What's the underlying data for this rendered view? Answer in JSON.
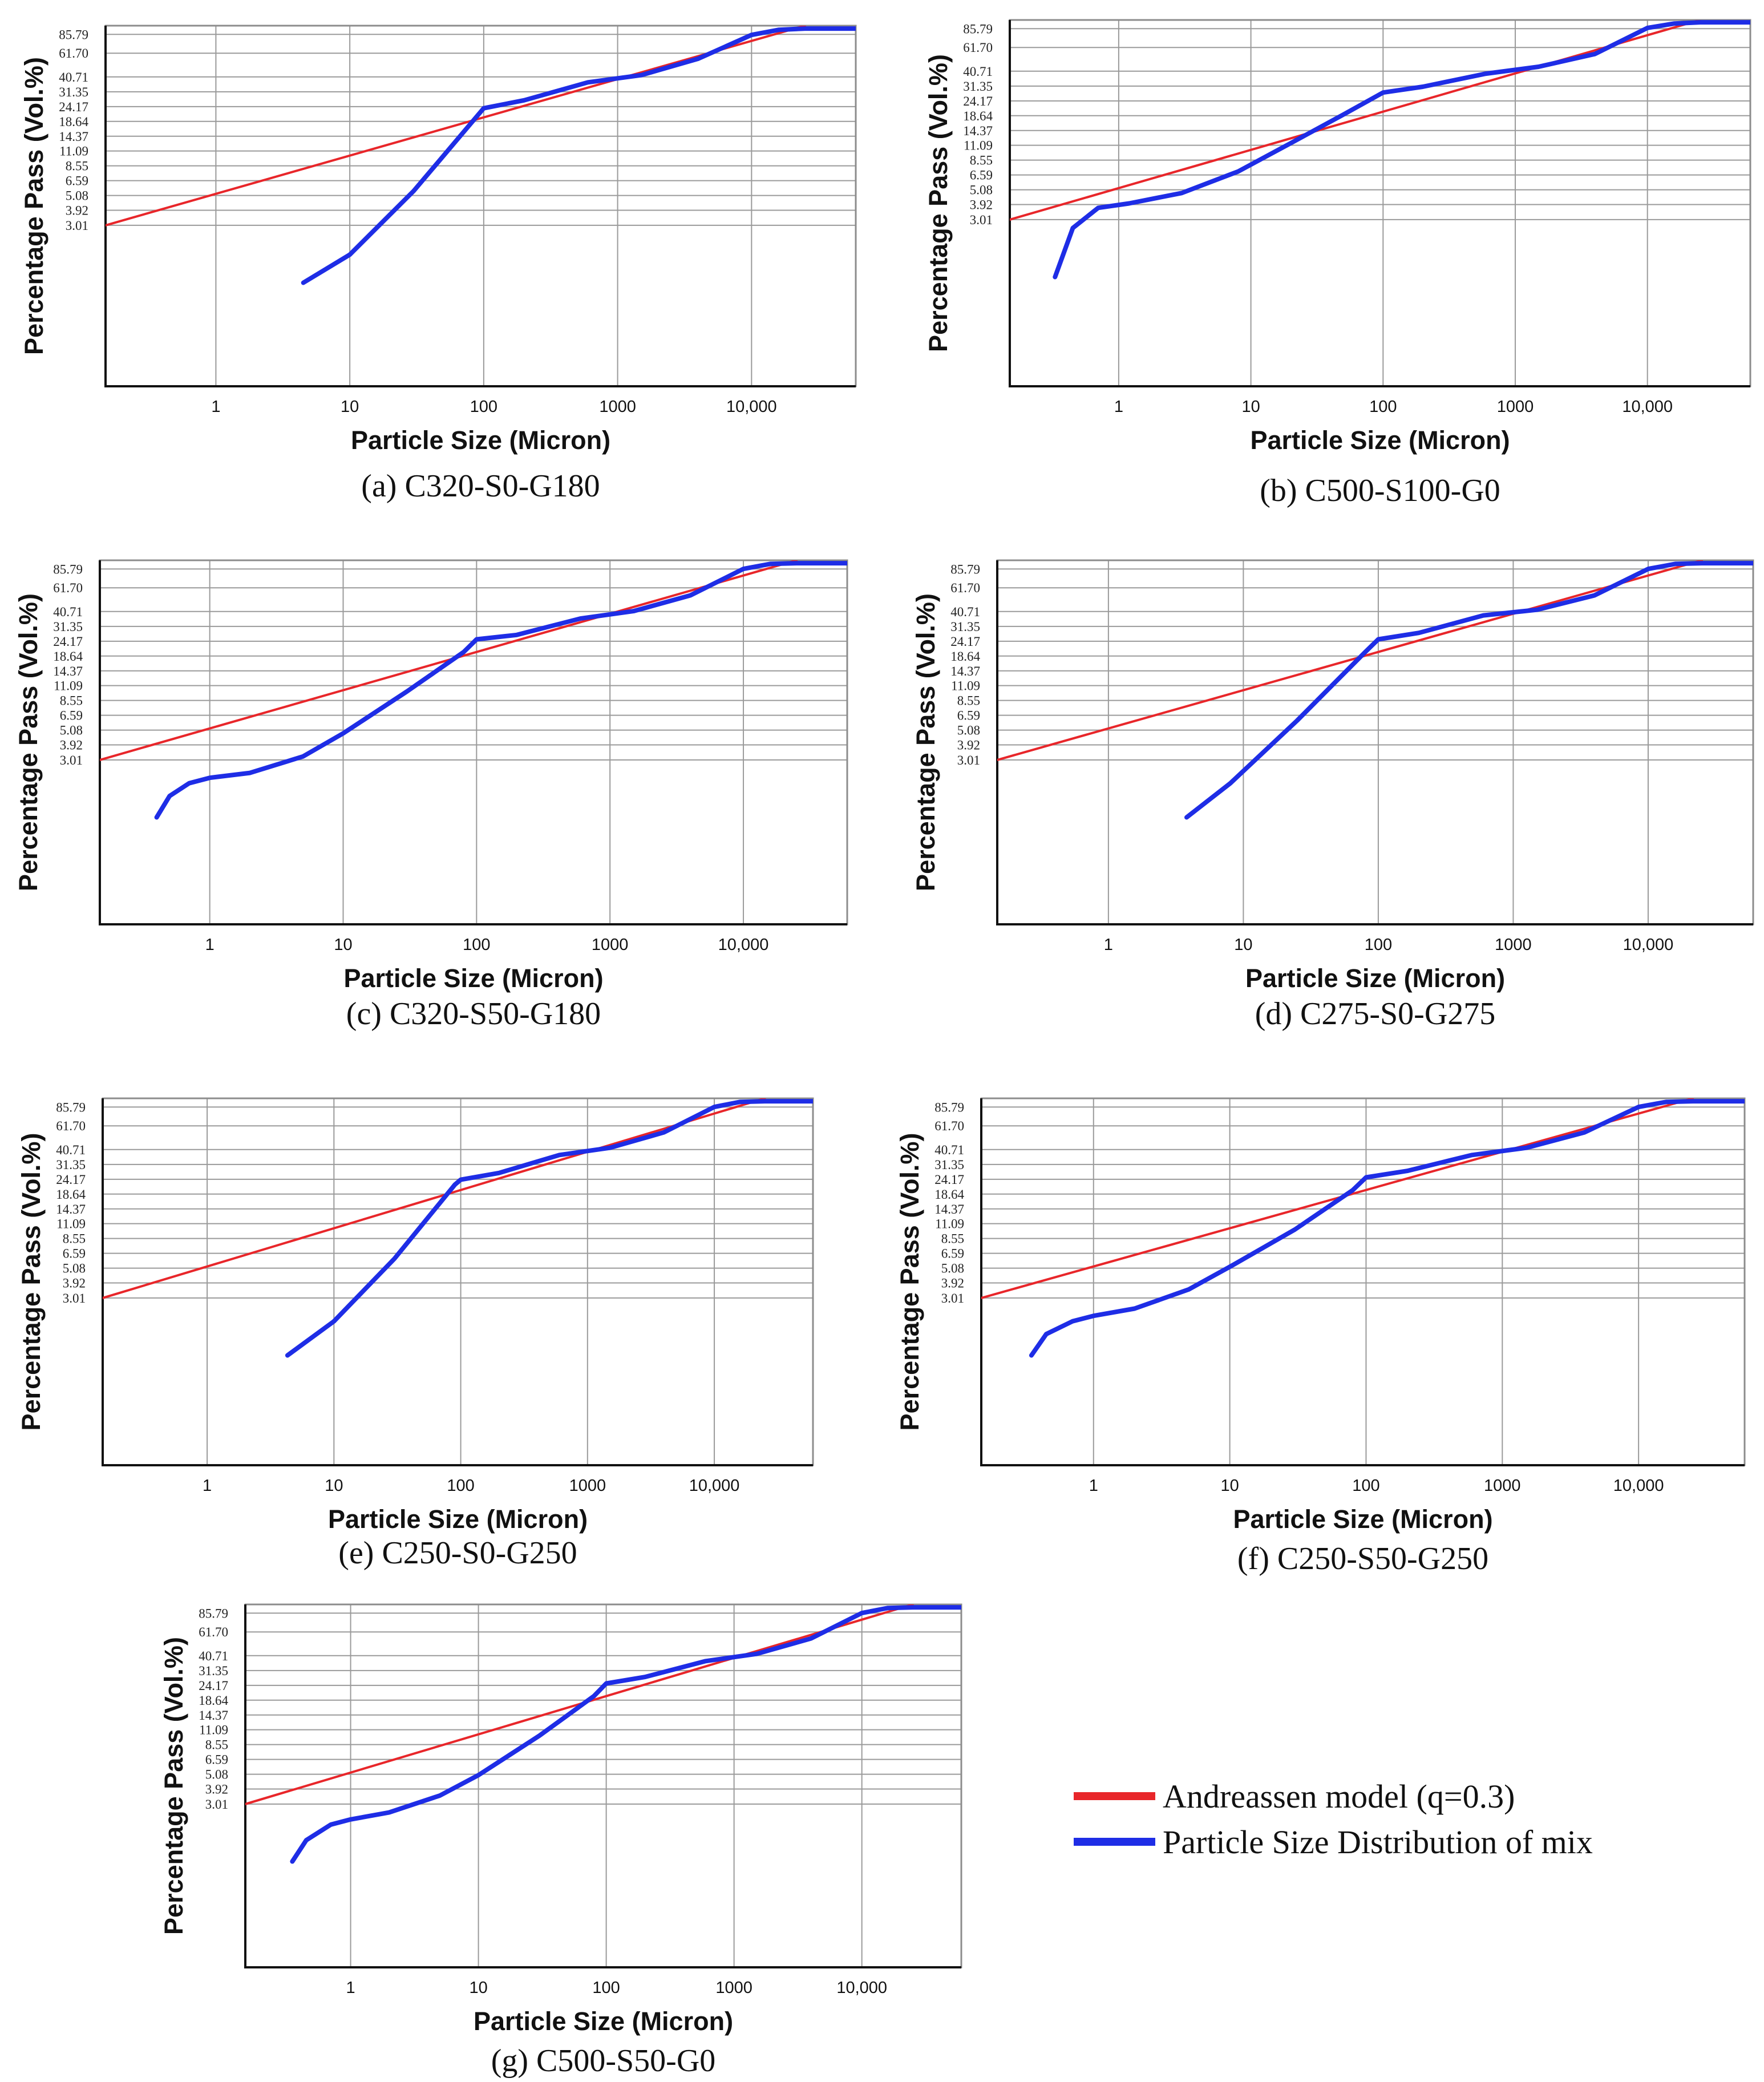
{
  "chart_data": [
    {
      "type": "line",
      "caption": "(a) C320-S0-G180",
      "xlabel": "Particle Size (Micron)",
      "ylabel": "Percentage Pass (Vol.%)",
      "x_scale": "log",
      "xlim": [
        0.15,
        60000
      ],
      "x_ticks": [
        "1",
        "10",
        "100",
        "1000",
        "10,000"
      ],
      "y_ticks": [
        "85.79",
        "61.70",
        "40.71",
        "31.35",
        "24.17",
        "18.64",
        "14.37",
        "11.09",
        "8.55",
        "6.59",
        "5.08",
        "3.92",
        "3.01"
      ],
      "grid": true,
      "series": [
        {
          "name": "Andreassen model (q=0.3)",
          "color": "#e8262a",
          "x": [
            0.15,
            25000
          ],
          "y": [
            3.01,
            100
          ]
        },
        {
          "name": "Particle Size Distribution of mix",
          "color": "#1e2de6",
          "x": [
            4.5,
            10,
            30,
            100,
            200,
            600,
            1500,
            4000,
            10000,
            16000,
            25000,
            60000
          ],
          "y": [
            1.1,
            1.8,
            5.5,
            23.5,
            27,
            37,
            42,
            56,
            85,
            93,
            95,
            95
          ]
        }
      ]
    },
    {
      "type": "line",
      "caption": "(b) C500-S100-G0",
      "xlabel": "Particle Size (Micron)",
      "ylabel": "Percentage Pass (Vol.%)",
      "x_scale": "log",
      "xlim": [
        0.15,
        60000
      ],
      "x_ticks": [
        "1",
        "10",
        "100",
        "1000",
        "10,000"
      ],
      "y_ticks": [
        "85.79",
        "61.70",
        "40.71",
        "31.35",
        "24.17",
        "18.64",
        "14.37",
        "11.09",
        "8.55",
        "6.59",
        "5.08",
        "3.92",
        "3.01"
      ],
      "grid": true,
      "series": [
        {
          "name": "Andreassen model (q=0.3)",
          "color": "#e8262a",
          "x": [
            0.15,
            25000
          ],
          "y": [
            3.01,
            100
          ]
        },
        {
          "name": "Particle Size Distribution of mix",
          "color": "#1e2de6",
          "x": [
            0.33,
            0.45,
            0.7,
            1.2,
            3,
            8,
            20,
            50,
            100,
            200,
            600,
            1500,
            4000,
            10000,
            16000,
            25000,
            60000
          ],
          "y": [
            1.1,
            2.6,
            3.7,
            4.0,
            4.8,
            7.0,
            11.5,
            19,
            28,
            31,
            39,
            44,
            55,
            87,
            94,
            96,
            96
          ]
        }
      ]
    },
    {
      "type": "line",
      "caption": "(c) C320-S50-G180",
      "xlabel": "Particle Size (Micron)",
      "ylabel": "Percentage Pass (Vol.%)",
      "x_scale": "log",
      "xlim": [
        0.15,
        60000
      ],
      "x_ticks": [
        "1",
        "10",
        "100",
        "1000",
        "10,000"
      ],
      "y_ticks": [
        "85.79",
        "61.70",
        "40.71",
        "31.35",
        "24.17",
        "18.64",
        "14.37",
        "11.09",
        "8.55",
        "6.59",
        "5.08",
        "3.92",
        "3.01"
      ],
      "grid": true,
      "series": [
        {
          "name": "Andreassen model (q=0.3)",
          "color": "#e8262a",
          "x": [
            0.15,
            25000
          ],
          "y": [
            3.01,
            100
          ]
        },
        {
          "name": "Particle Size Distribution of mix",
          "color": "#1e2de6",
          "x": [
            0.4,
            0.5,
            0.7,
            1,
            2,
            5,
            10,
            30,
            80,
            100,
            200,
            600,
            1500,
            4000,
            10000,
            16000,
            25000,
            60000
          ],
          "y": [
            1.1,
            1.6,
            2.0,
            2.2,
            2.4,
            3.2,
            4.8,
            10,
            20,
            25,
            27,
            36,
            41,
            54,
            86,
            94,
            95,
            95
          ]
        }
      ]
    },
    {
      "type": "line",
      "caption": "(d) C275-S0-G275",
      "xlabel": "Particle Size (Micron)",
      "ylabel": "Percentage Pass (Vol.%)",
      "x_scale": "log",
      "xlim": [
        0.15,
        60000
      ],
      "x_ticks": [
        "1",
        "10",
        "100",
        "1000",
        "10,000"
      ],
      "y_ticks": [
        "85.79",
        "61.70",
        "40.71",
        "31.35",
        "24.17",
        "18.64",
        "14.37",
        "11.09",
        "8.55",
        "6.59",
        "5.08",
        "3.92",
        "3.01"
      ],
      "grid": true,
      "series": [
        {
          "name": "Andreassen model (q=0.3)",
          "color": "#e8262a",
          "x": [
            0.15,
            25000
          ],
          "y": [
            3.01,
            100
          ]
        },
        {
          "name": "Particle Size Distribution of mix",
          "color": "#1e2de6",
          "x": [
            3.8,
            8,
            25,
            80,
            100,
            200,
            600,
            1500,
            4000,
            10000,
            16000,
            25000,
            60000
          ],
          "y": [
            1.1,
            2.0,
            6,
            20,
            25,
            28,
            38,
            42,
            54,
            86,
            94,
            95,
            95
          ]
        }
      ]
    },
    {
      "type": "line",
      "caption": "(e) C250-S0-G250",
      "xlabel": "Particle Size (Micron)",
      "ylabel": "Percentage Pass (Vol.%)",
      "x_scale": "log",
      "xlim": [
        0.15,
        60000
      ],
      "x_ticks": [
        "1",
        "10",
        "100",
        "1000",
        "10,000"
      ],
      "y_ticks": [
        "85.79",
        "61.70",
        "40.71",
        "31.35",
        "24.17",
        "18.64",
        "14.37",
        "11.09",
        "8.55",
        "6.59",
        "5.08",
        "3.92",
        "3.01"
      ],
      "grid": true,
      "series": [
        {
          "name": "Andreassen model (q=0.3)",
          "color": "#e8262a",
          "x": [
            0.15,
            25000
          ],
          "y": [
            3.01,
            100
          ]
        },
        {
          "name": "Particle Size Distribution of mix",
          "color": "#1e2de6",
          "x": [
            4.3,
            10,
            30,
            90,
            100,
            200,
            600,
            1500,
            4000,
            10000,
            16000,
            25000,
            60000
          ],
          "y": [
            1.1,
            2.0,
            6,
            22,
            24,
            27,
            37,
            42,
            55,
            86,
            94,
            95,
            95
          ]
        }
      ]
    },
    {
      "type": "line",
      "caption": "(f) C250-S50-G250",
      "xlabel": "Particle Size (Micron)",
      "ylabel": "Percentage Pass (Vol.%)",
      "x_scale": "log",
      "xlim": [
        0.15,
        60000
      ],
      "x_ticks": [
        "1",
        "10",
        "100",
        "1000",
        "10,000"
      ],
      "y_ticks": [
        "85.79",
        "61.70",
        "40.71",
        "31.35",
        "24.17",
        "18.64",
        "14.37",
        "11.09",
        "8.55",
        "6.59",
        "5.08",
        "3.92",
        "3.01"
      ],
      "grid": true,
      "series": [
        {
          "name": "Andreassen model (q=0.3)",
          "color": "#e8262a",
          "x": [
            0.15,
            25000
          ],
          "y": [
            3.01,
            100
          ]
        },
        {
          "name": "Particle Size Distribution of mix",
          "color": "#1e2de6",
          "x": [
            0.35,
            0.45,
            0.7,
            1,
            2,
            5,
            10,
            30,
            80,
            100,
            200,
            600,
            1500,
            4000,
            10000,
            16000,
            25000,
            60000
          ],
          "y": [
            1.1,
            1.6,
            2.0,
            2.2,
            2.5,
            3.5,
            5.2,
            10,
            20,
            25,
            28,
            37,
            42,
            55,
            86,
            94,
            95,
            95
          ]
        }
      ]
    },
    {
      "type": "line",
      "caption": "(g) C500-S50-G0",
      "xlabel": "Particle Size (Micron)",
      "ylabel": "Percentage Pass (Vol.%)",
      "x_scale": "log",
      "xlim": [
        0.15,
        60000
      ],
      "x_ticks": [
        "1",
        "10",
        "100",
        "1000",
        "10,000"
      ],
      "y_ticks": [
        "85.79",
        "61.70",
        "40.71",
        "31.35",
        "24.17",
        "18.64",
        "14.37",
        "11.09",
        "8.55",
        "6.59",
        "5.08",
        "3.92",
        "3.01"
      ],
      "grid": true,
      "series": [
        {
          "name": "Andreassen model (q=0.3)",
          "color": "#e8262a",
          "x": [
            0.15,
            25000
          ],
          "y": [
            3.01,
            100
          ]
        },
        {
          "name": "Particle Size Distribution of mix",
          "color": "#1e2de6",
          "x": [
            0.35,
            0.45,
            0.7,
            1,
            2,
            5,
            10,
            30,
            80,
            100,
            200,
            600,
            1500,
            4000,
            10000,
            16000,
            25000,
            60000
          ],
          "y": [
            1.1,
            1.6,
            2.1,
            2.3,
            2.6,
            3.5,
            5.0,
            10,
            20,
            25,
            28,
            37,
            42,
            55,
            86,
            94,
            95,
            95
          ]
        }
      ]
    }
  ],
  "legend": {
    "position": "bottom-right",
    "items": [
      {
        "label": "Andreassen model (q=0.3)",
        "color": "#e8262a"
      },
      {
        "label": "Particle Size Distribution of mix",
        "color": "#1e2de6"
      }
    ]
  }
}
